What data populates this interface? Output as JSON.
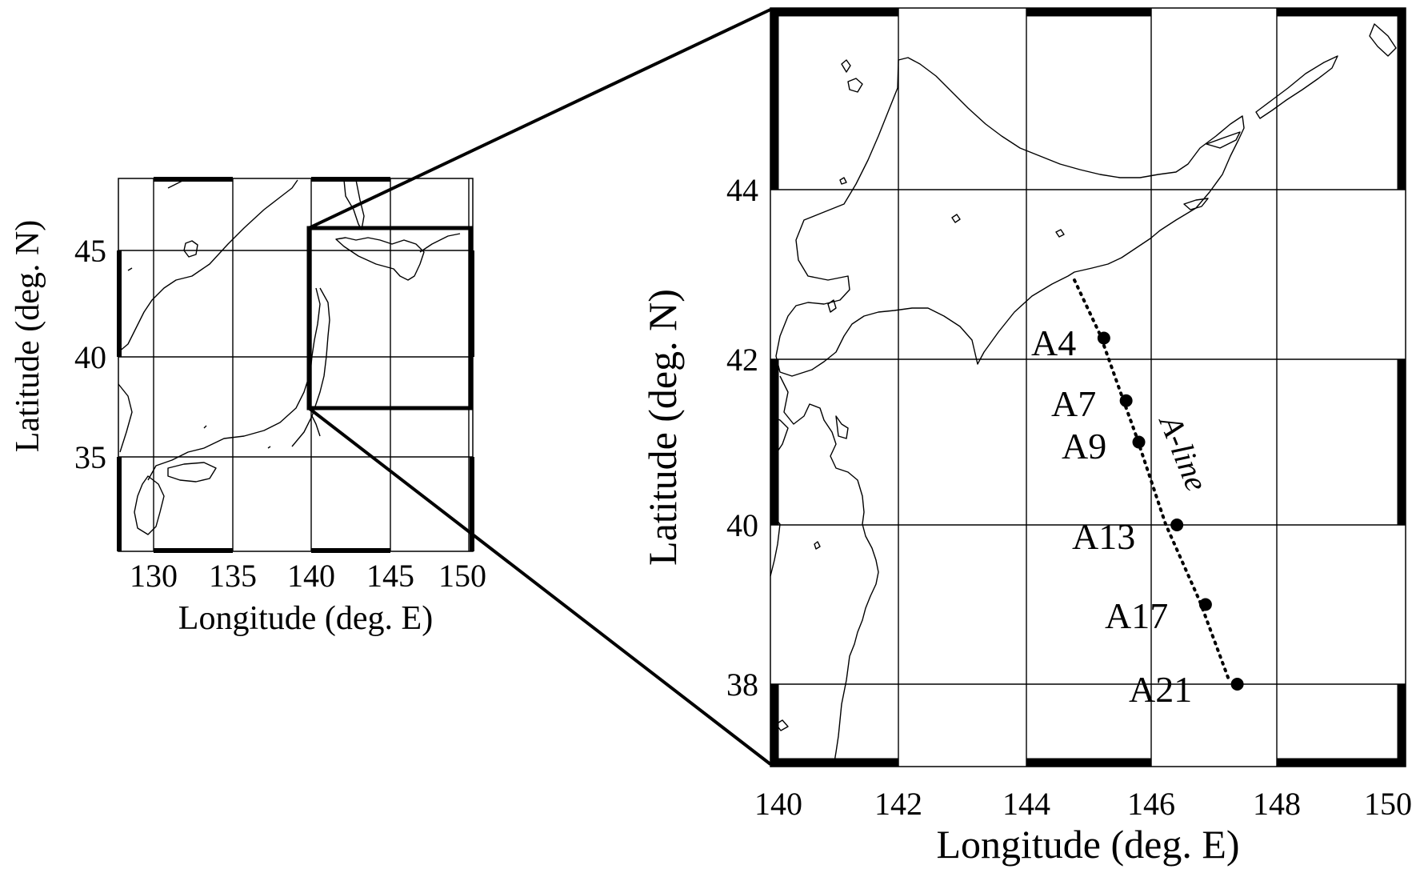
{
  "overview_map": {
    "x_ticks": [
      "130",
      "135",
      "140",
      "145",
      "150"
    ],
    "y_ticks": [
      "45",
      "40",
      "35"
    ],
    "xlabel": "Longitude (deg. E)",
    "ylabel": "Latitude (deg. N)"
  },
  "detail_map": {
    "x_ticks": [
      "140",
      "142",
      "144",
      "146",
      "148",
      "150"
    ],
    "y_ticks": [
      "44",
      "42",
      "40",
      "38"
    ],
    "xlabel": "Longitude (deg. E)",
    "ylabel": "Latitude (deg. N)",
    "line_label": "A-line"
  },
  "stations": [
    {
      "name": "A4",
      "lon": 145.25,
      "lat": 42.25
    },
    {
      "name": "A7",
      "lon": 145.6,
      "lat": 41.5
    },
    {
      "name": "A9",
      "lon": 145.8,
      "lat": 41.0
    },
    {
      "name": "A13",
      "lon": 146.4,
      "lat": 40.0
    },
    {
      "name": "A17",
      "lon": 146.85,
      "lat": 39.0
    },
    {
      "name": "A21",
      "lon": 147.35,
      "lat": 38.0
    }
  ],
  "colors": {
    "ink": "#000000",
    "background": "#ffffff"
  }
}
